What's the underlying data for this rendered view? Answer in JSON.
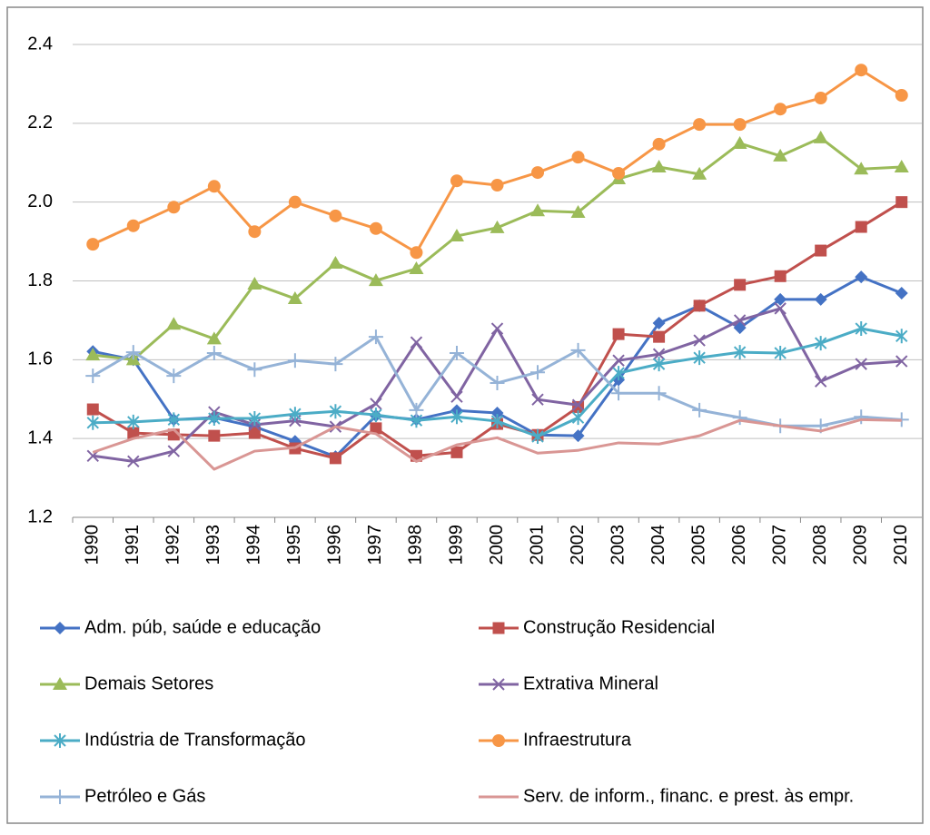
{
  "chart_data": {
    "type": "line",
    "categories": [
      "1990",
      "1991",
      "1992",
      "1993",
      "1994",
      "1995",
      "1996",
      "1997",
      "1998",
      "1999",
      "2000",
      "2001",
      "2002",
      "2003",
      "2004",
      "2005",
      "2006",
      "2007",
      "2008",
      "2009",
      "2010"
    ],
    "ylim": [
      1.2,
      2.4
    ],
    "yticks": [
      {
        "value": 1.2,
        "label": "1.2"
      },
      {
        "value": 1.4,
        "label": "1.4"
      },
      {
        "value": 1.6,
        "label": "1.6"
      },
      {
        "value": 1.8,
        "label": "1.8"
      },
      {
        "value": 2.0,
        "label": "2.0"
      },
      {
        "value": 2.2,
        "label": "2.2"
      },
      {
        "value": 2.4,
        "label": "2.4"
      }
    ],
    "grid": true,
    "legend": "bottom",
    "series": [
      {
        "name": "Adm. púb, saúde e educação",
        "color": "#4472c4",
        "marker": "diamond",
        "values": [
          1.621,
          1.6,
          1.448,
          1.453,
          1.43,
          1.393,
          1.354,
          1.458,
          1.448,
          1.471,
          1.465,
          1.409,
          1.407,
          1.549,
          1.693,
          1.737,
          1.681,
          1.753,
          1.753,
          1.81,
          1.769
        ]
      },
      {
        "name": "Construção Residencial",
        "color": "#c0504d",
        "marker": "square",
        "values": [
          1.474,
          1.414,
          1.41,
          1.407,
          1.414,
          1.375,
          1.35,
          1.426,
          1.356,
          1.365,
          1.437,
          1.409,
          1.48,
          1.665,
          1.658,
          1.737,
          1.79,
          1.812,
          1.877,
          1.937,
          2.0
        ]
      },
      {
        "name": "Demais Setores",
        "color": "#9bbb59",
        "marker": "triangle",
        "values": [
          1.612,
          1.6,
          1.69,
          1.653,
          1.792,
          1.755,
          1.845,
          1.801,
          1.831,
          1.914,
          1.935,
          1.978,
          1.974,
          2.059,
          2.089,
          2.071,
          2.149,
          2.117,
          2.163,
          2.084,
          2.089
        ]
      },
      {
        "name": "Extrativa Mineral",
        "color": "#8064a2",
        "marker": "x",
        "values": [
          1.356,
          1.342,
          1.368,
          1.467,
          1.435,
          1.445,
          1.43,
          1.488,
          1.644,
          1.506,
          1.679,
          1.499,
          1.485,
          1.598,
          1.614,
          1.649,
          1.7,
          1.73,
          1.545,
          1.589,
          1.596
        ]
      },
      {
        "name": "Indústria de Transformação",
        "color": "#4bacc6",
        "marker": "asterisk",
        "values": [
          1.44,
          1.442,
          1.448,
          1.451,
          1.451,
          1.462,
          1.469,
          1.46,
          1.446,
          1.455,
          1.444,
          1.405,
          1.453,
          1.566,
          1.589,
          1.605,
          1.619,
          1.617,
          1.642,
          1.679,
          1.66
        ]
      },
      {
        "name": "Infraestrutura",
        "color": "#f79646",
        "marker": "circle",
        "values": [
          1.893,
          1.94,
          1.987,
          2.04,
          1.925,
          2.0,
          1.965,
          1.933,
          1.872,
          2.054,
          2.043,
          2.075,
          2.114,
          2.073,
          2.147,
          2.197,
          2.197,
          2.236,
          2.264,
          2.335,
          2.271
        ]
      },
      {
        "name": "Petróleo e Gás",
        "color": "#95b3d7",
        "marker": "plus",
        "values": [
          1.559,
          1.619,
          1.559,
          1.617,
          1.575,
          1.598,
          1.589,
          1.658,
          1.472,
          1.617,
          1.541,
          1.568,
          1.624,
          1.515,
          1.515,
          1.472,
          1.453,
          1.432,
          1.432,
          1.455,
          1.448
        ]
      },
      {
        "name": "Serv. de inform., financ. e prest. às empr.",
        "color": "#d99694",
        "marker": "none",
        "values": [
          1.365,
          1.4,
          1.423,
          1.322,
          1.368,
          1.377,
          1.43,
          1.412,
          1.342,
          1.384,
          1.402,
          1.363,
          1.37,
          1.389,
          1.386,
          1.407,
          1.446,
          1.432,
          1.419,
          1.448,
          1.446
        ]
      }
    ]
  }
}
